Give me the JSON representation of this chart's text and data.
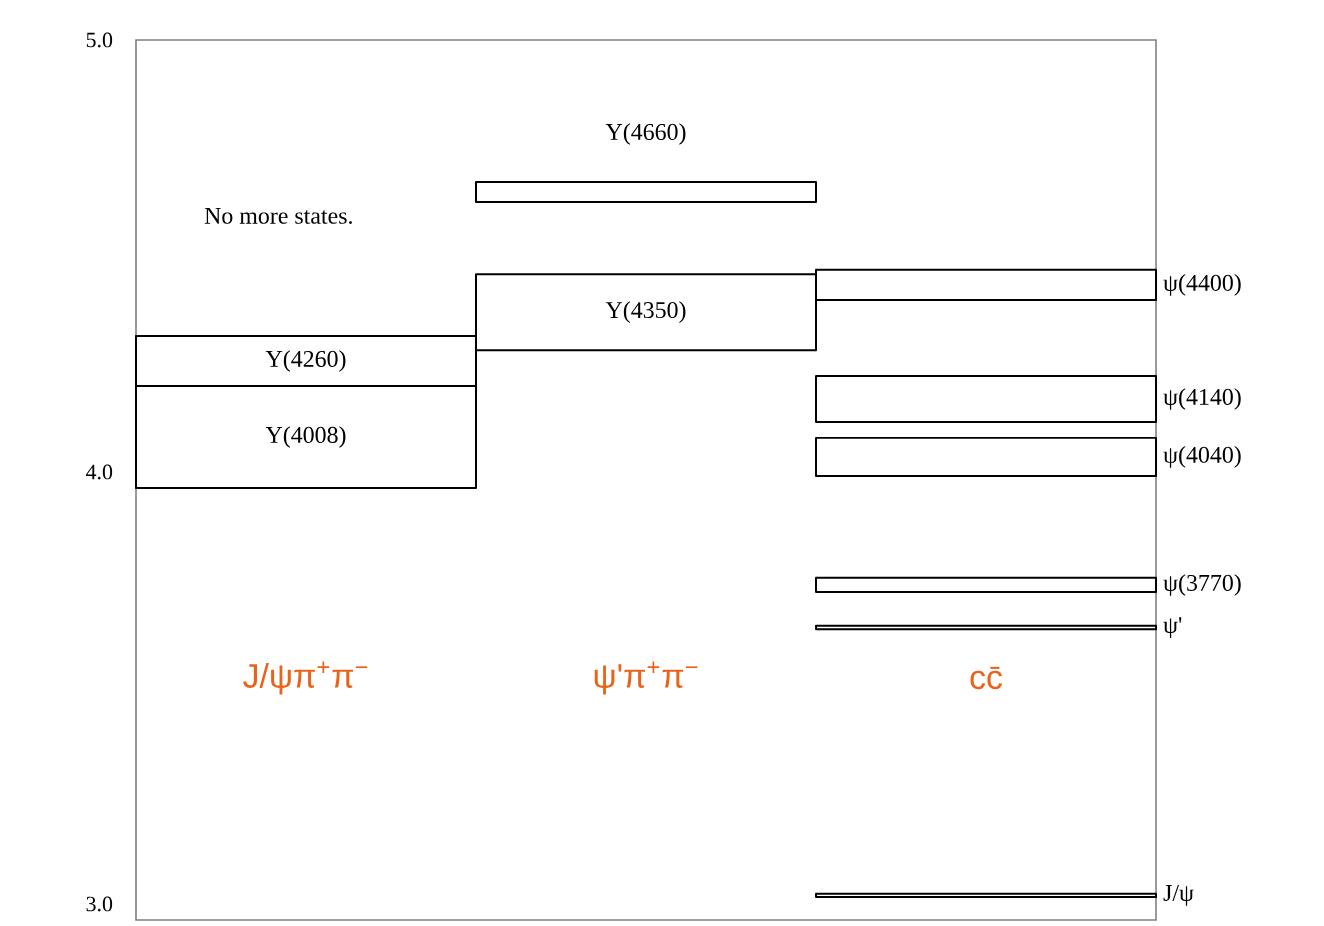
{
  "chart_data": {
    "type": "bar",
    "categories": [
      "J/ψπ$^{+}$π$^{−}$",
      "ψ'π$^{+}$π$^{−}$",
      "cc̄"
    ],
    "ylim": [
      2.963,
      5.0
    ],
    "yticks": [
      {
        "value": 3.0,
        "label": "3.0"
      },
      {
        "value": 4.0,
        "label": "4.0"
      },
      {
        "value": 5.0,
        "label": "5.0"
      }
    ],
    "series": [
      {
        "name": "Y(4008)",
        "color": "#000000",
        "base": [
          3.963,
          null,
          null
        ],
        "values": [
          0.236,
          null,
          null
        ]
      },
      {
        "name": "Y(4260)",
        "color": "#000000",
        "base": [
          4.199,
          null,
          null
        ],
        "values": [
          0.116,
          null,
          null
        ]
      },
      {
        "name": "Y(4660)",
        "color": "#000000",
        "base": [
          null,
          4.625,
          null
        ],
        "values": [
          null,
          0.046,
          null
        ]
      },
      {
        "name": "Y(4350)",
        "color": "#000000",
        "base": [
          null,
          4.282,
          null
        ],
        "values": [
          null,
          0.176,
          null
        ]
      },
      {
        "name": "ψ(4400)",
        "color": "#000000",
        "base": [
          null,
          null,
          4.398
        ],
        "values": [
          null,
          null,
          0.07
        ]
      },
      {
        "name": "ψ(4140)",
        "color": "#000000",
        "base": [
          null,
          null,
          4.116
        ],
        "values": [
          null,
          null,
          0.106
        ]
      },
      {
        "name": "ψ(4040)",
        "color": "#000000",
        "base": [
          null,
          null,
          3.991
        ],
        "values": [
          null,
          null,
          0.088
        ]
      },
      {
        "name": "ψ(3770)",
        "color": "#000000",
        "base": [
          null,
          null,
          3.722
        ],
        "values": [
          null,
          null,
          0.033
        ]
      },
      {
        "name": "ψ'",
        "color": "#000000",
        "base": [
          null,
          null,
          3.636
        ],
        "values": [
          null,
          null,
          0.008
        ]
      },
      {
        "name": "J/ψ",
        "color": "#000000",
        "base": [
          null,
          null,
          3.016
        ],
        "values": [
          null,
          null,
          0.008
        ]
      }
    ],
    "annotations": [
      "No more states."
    ],
    "grid": false
  }
}
